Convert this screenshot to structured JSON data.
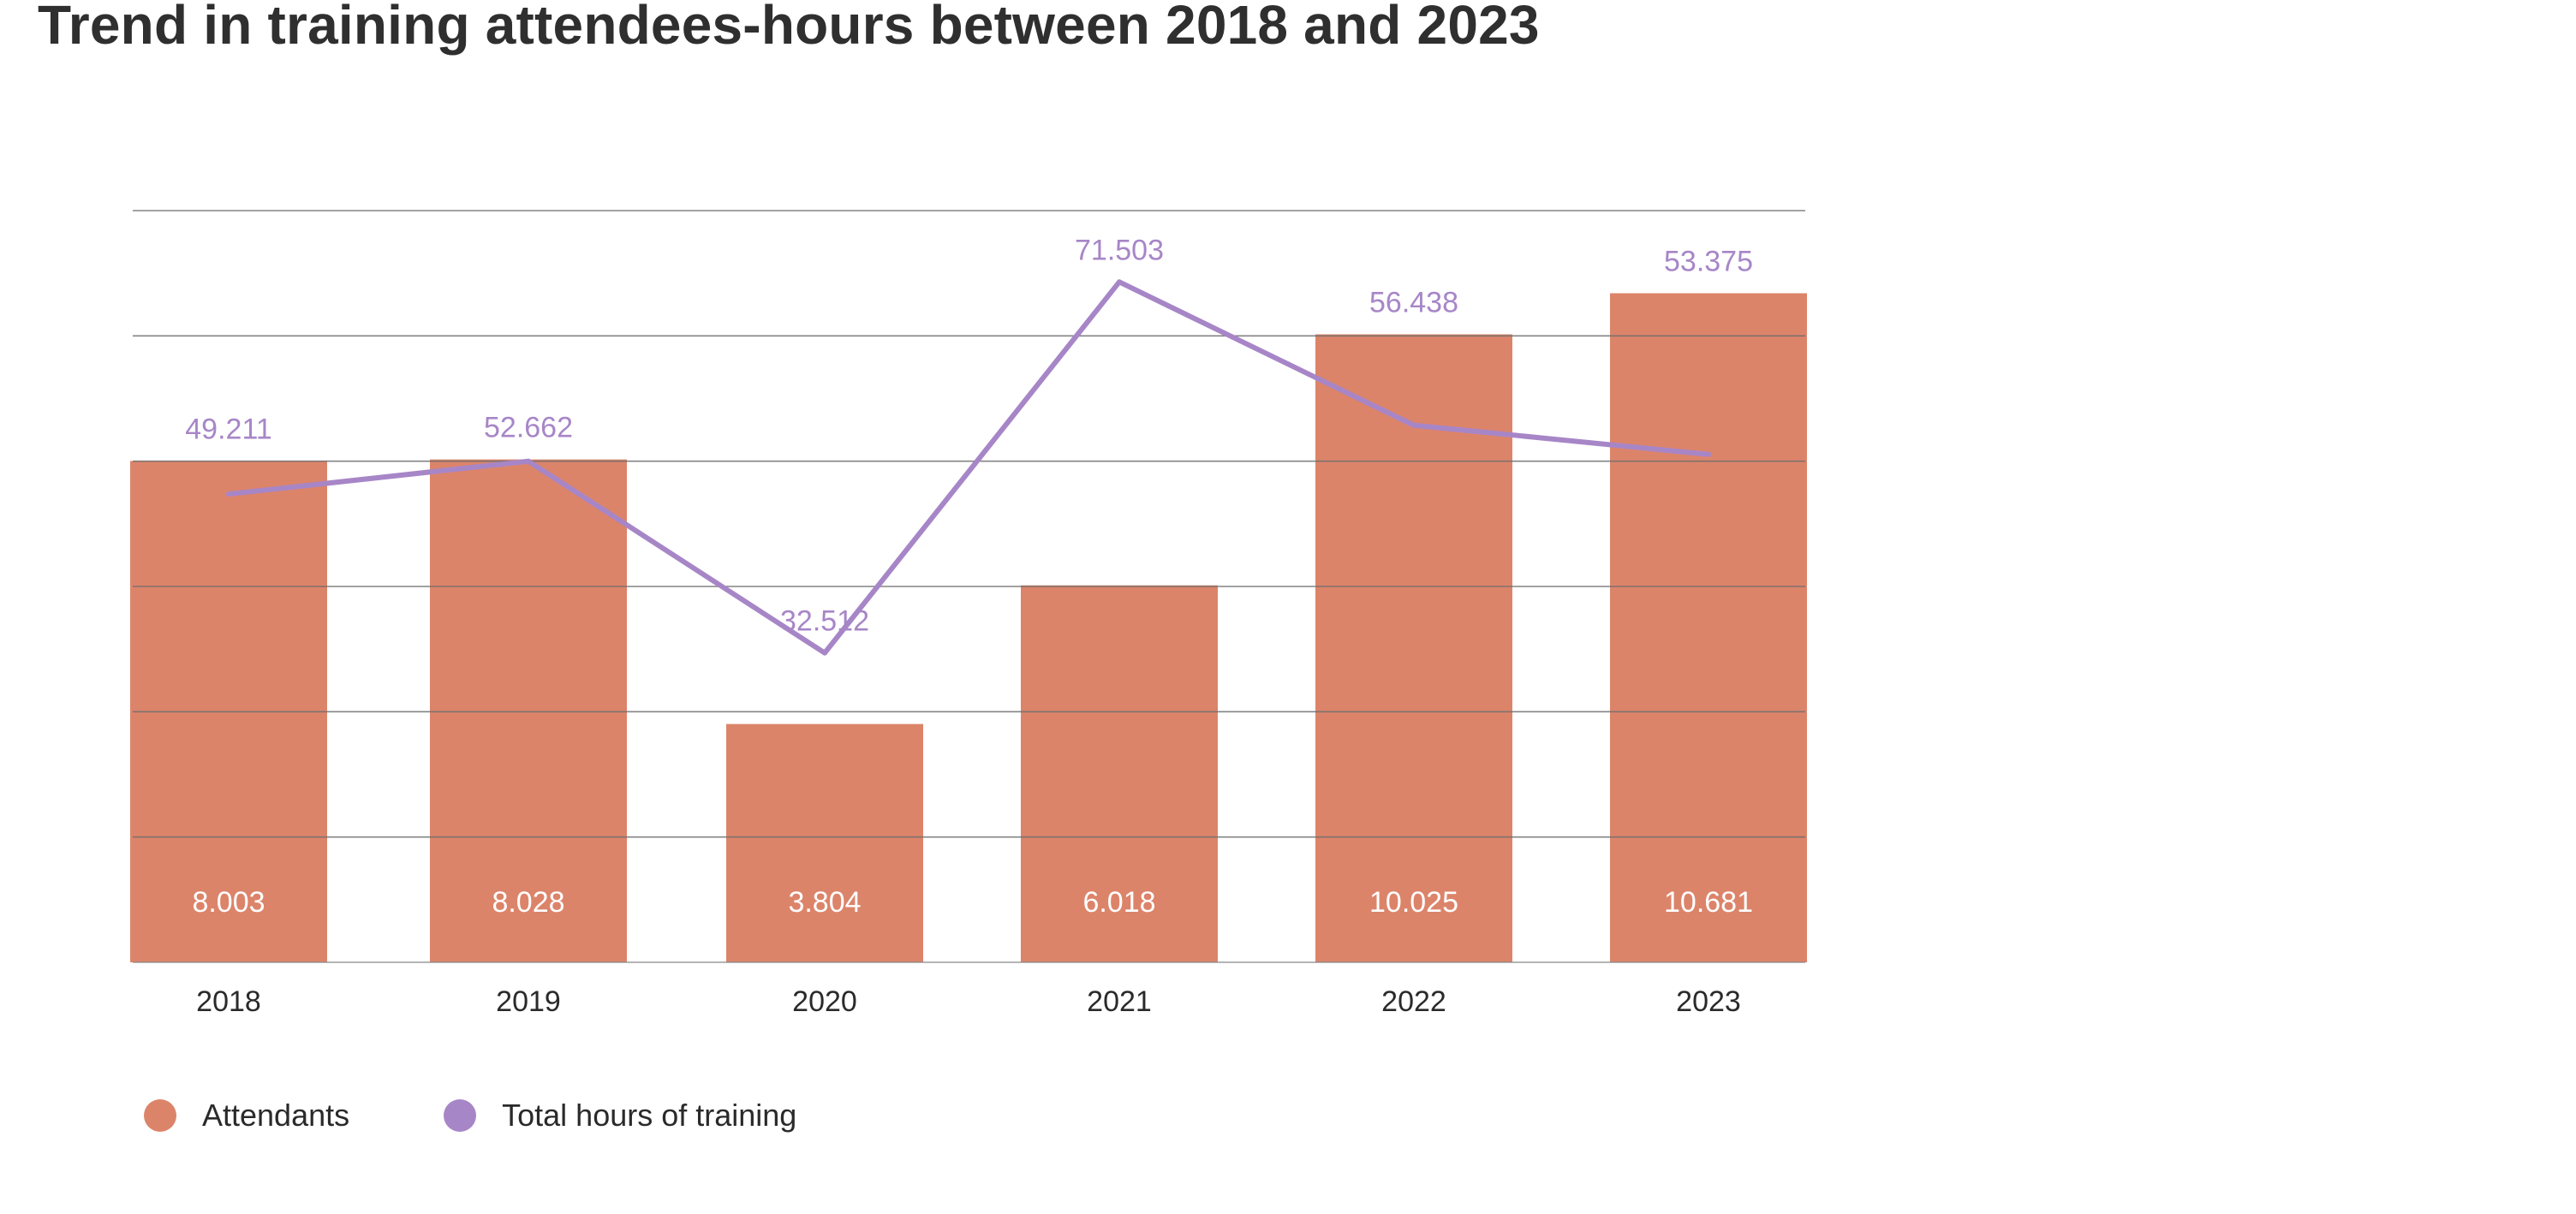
{
  "chart_data": {
    "type": "bar",
    "title": "Trend in training attendees-hours between 2018 and 2023",
    "categories": [
      "2018",
      "2019",
      "2020",
      "2021",
      "2022",
      "2023"
    ],
    "series": [
      {
        "name": "Attendants",
        "type": "bar",
        "color": "#dc846a",
        "values": [
          8003,
          8028,
          3804,
          6018,
          10025,
          10681
        ],
        "labels": [
          "8.003",
          "8.028",
          "3.804",
          "6.018",
          "10.025",
          "10.681"
        ]
      },
      {
        "name": "Total hours of training",
        "type": "line",
        "color": "#a786c7",
        "values": [
          49211,
          52662,
          32512,
          71503,
          56438,
          53375
        ],
        "labels": [
          "49.211",
          "52.662",
          "32.512",
          "71.503",
          "56.438",
          "53.375"
        ]
      }
    ],
    "bar_axis_range": [
      0,
      12000
    ],
    "line_axis_range": [
      0,
      79000
    ],
    "grid": true,
    "legend_position": "bottom-left"
  }
}
